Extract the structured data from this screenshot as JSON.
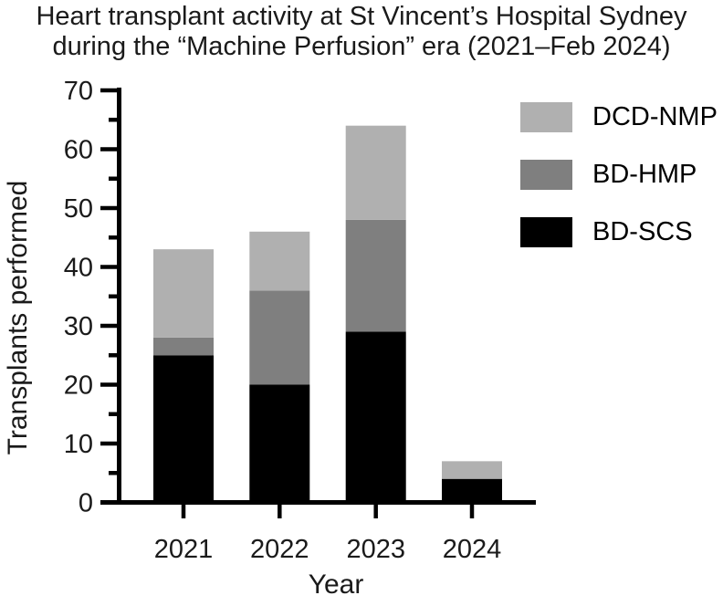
{
  "title": {
    "line1": "Heart transplant activity at St Vincent’s Hospital Sydney",
    "line2": "during the “Machine Perfusion” era (2021–Feb 2024)"
  },
  "colors": {
    "dcd_nmp": "#b0b0b0",
    "bd_hmp": "#7f7f7f",
    "bd_scs": "#000000",
    "axis": "#000000",
    "text": "#1a1a1a"
  },
  "legend": {
    "items": [
      {
        "label": "DCD-NMP",
        "color": "#b0b0b0"
      },
      {
        "label": "BD-HMP",
        "color": "#7f7f7f"
      },
      {
        "label": "BD-SCS",
        "color": "#000000"
      }
    ]
  },
  "chart_data": {
    "type": "bar",
    "stacked": true,
    "title": "Heart transplant activity at St Vincent’s Hospital Sydney during the “Machine Perfusion” era (2021–Feb 2024)",
    "xlabel": "Year",
    "ylabel": "Transplants performed",
    "categories": [
      "2021",
      "2022",
      "2023",
      "2024"
    ],
    "series": [
      {
        "name": "BD-SCS",
        "color": "#000000",
        "values": [
          25,
          20,
          29,
          4
        ]
      },
      {
        "name": "BD-HMP",
        "color": "#7f7f7f",
        "values": [
          3,
          16,
          19,
          0
        ]
      },
      {
        "name": "DCD-NMP",
        "color": "#b0b0b0",
        "values": [
          15,
          10,
          16,
          3
        ]
      }
    ],
    "totals": [
      43,
      46,
      64,
      7
    ],
    "ylim": [
      0,
      70
    ],
    "yticks": [
      0,
      10,
      20,
      30,
      40,
      50,
      60,
      70
    ],
    "minor_yticks": [
      5,
      15,
      25,
      35,
      45,
      55,
      65
    ],
    "ytick_labels": [
      "0",
      "10",
      "20",
      "30",
      "40",
      "50",
      "60",
      "70"
    ],
    "grid": false,
    "legend_position": "upper right"
  }
}
